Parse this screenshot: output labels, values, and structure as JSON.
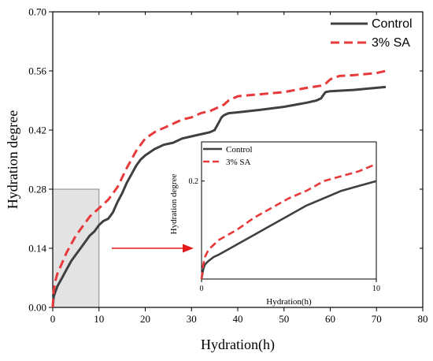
{
  "chart_data": [
    {
      "type": "line",
      "xlabel": "Hydration(h)",
      "ylabel": "Hydration degree",
      "xlim": [
        0,
        80
      ],
      "ylim": [
        0,
        0.7
      ],
      "xticks": [
        "0",
        "10",
        "20",
        "30",
        "40",
        "50",
        "60",
        "70",
        "80"
      ],
      "yticks": [
        "0.00",
        "0.14",
        "0.28",
        "0.42",
        "0.56",
        "0.70"
      ],
      "grid": false,
      "legend": "top-right",
      "highlight_region": {
        "x": [
          0,
          10
        ],
        "y": [
          0,
          0.28
        ]
      },
      "series": [
        {
          "name": "Control",
          "color": "#404040",
          "style": "solid",
          "x": [
            0,
            0.2,
            0.5,
            1,
            2,
            3,
            4,
            5,
            6,
            7,
            8,
            9,
            10,
            11,
            12,
            13,
            14,
            15,
            16,
            17,
            18,
            19,
            20,
            22,
            24,
            26,
            28,
            30,
            32,
            34,
            35,
            35.5,
            36,
            36.5,
            37,
            38,
            40,
            45,
            50,
            55,
            57,
            58,
            58.5,
            59,
            60,
            65,
            70,
            72
          ],
          "y": [
            0.0,
            0.025,
            0.035,
            0.05,
            0.07,
            0.09,
            0.11,
            0.125,
            0.14,
            0.155,
            0.17,
            0.18,
            0.195,
            0.205,
            0.21,
            0.225,
            0.25,
            0.27,
            0.295,
            0.315,
            0.335,
            0.35,
            0.36,
            0.375,
            0.385,
            0.39,
            0.4,
            0.405,
            0.41,
            0.415,
            0.42,
            0.43,
            0.44,
            0.45,
            0.455,
            0.46,
            0.462,
            0.468,
            0.475,
            0.485,
            0.49,
            0.495,
            0.503,
            0.51,
            0.512,
            0.515,
            0.52,
            0.522
          ]
        },
        {
          "name": "3% SA",
          "color": "#e8393b",
          "style": "dashed",
          "x": [
            0,
            0.2,
            0.5,
            1,
            2,
            3,
            4,
            5,
            6,
            7,
            8,
            9,
            10,
            12,
            14,
            16,
            18,
            19,
            20,
            22,
            24,
            26,
            28,
            30,
            32,
            34,
            36,
            37,
            38,
            40,
            45,
            50,
            55,
            58,
            59,
            60,
            61,
            62,
            65,
            70,
            72
          ],
          "y": [
            0.0,
            0.04,
            0.06,
            0.08,
            0.105,
            0.13,
            0.15,
            0.17,
            0.185,
            0.2,
            0.215,
            0.225,
            0.235,
            0.255,
            0.285,
            0.33,
            0.37,
            0.385,
            0.4,
            0.415,
            0.425,
            0.435,
            0.445,
            0.45,
            0.46,
            0.465,
            0.475,
            0.48,
            0.49,
            0.5,
            0.505,
            0.51,
            0.52,
            0.525,
            0.53,
            0.54,
            0.545,
            0.548,
            0.55,
            0.555,
            0.56
          ]
        }
      ]
    },
    {
      "type": "line",
      "inset": true,
      "xlabel": "Hydration(h)",
      "ylabel": "Hydration degree",
      "xlim": [
        0,
        10
      ],
      "ylim": [
        0,
        0.28
      ],
      "xticks": [
        "0",
        "10"
      ],
      "yticks": [
        "0.2"
      ],
      "legend": "top-left",
      "series": [
        {
          "name": "Control",
          "color": "#404040",
          "style": "solid",
          "x": [
            0,
            0.1,
            0.2,
            0.4,
            0.7,
            1,
            1.5,
            2,
            3,
            4,
            5,
            6,
            7,
            8,
            9,
            10
          ],
          "y": [
            0.0,
            0.02,
            0.03,
            0.037,
            0.045,
            0.05,
            0.06,
            0.07,
            0.09,
            0.11,
            0.13,
            0.15,
            0.165,
            0.18,
            0.19,
            0.2
          ]
        },
        {
          "name": "3% SA",
          "color": "#e8393b",
          "style": "dashed",
          "x": [
            0,
            0.1,
            0.2,
            0.4,
            0.7,
            1,
            1.5,
            2,
            3,
            4,
            5,
            6,
            7,
            8,
            9,
            10
          ],
          "y": [
            0.0,
            0.03,
            0.045,
            0.06,
            0.07,
            0.08,
            0.09,
            0.1,
            0.125,
            0.145,
            0.165,
            0.18,
            0.2,
            0.21,
            0.22,
            0.235
          ]
        }
      ]
    }
  ]
}
